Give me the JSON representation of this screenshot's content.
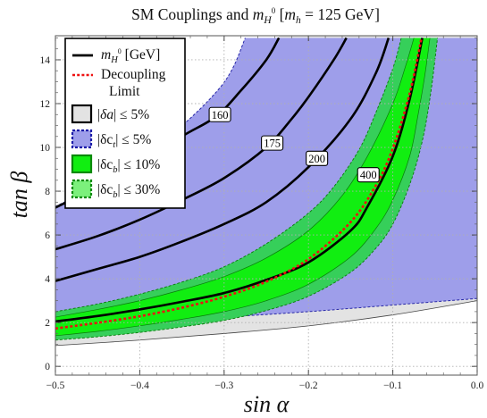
{
  "chart_data": {
    "type": "contour-region",
    "title": "SM Couplings and m_H⁰ [m_h = 125 GeV]",
    "title_parts": {
      "pre": "SM Couplings and ",
      "var": "m",
      "sub": "H",
      "sup": "0",
      "post": " [",
      "var2": "m",
      "sub2": "h",
      "post2": " = 125 GeV]"
    },
    "xlabel": "sin α",
    "ylabel": "tan β",
    "xlim": [
      -0.5,
      0.0
    ],
    "ylim": [
      -0.4,
      15.1
    ],
    "xticks": [
      -0.5,
      -0.4,
      -0.3,
      -0.2,
      -0.1,
      0.0
    ],
    "xtick_labels": [
      "−0.5",
      "−0.4",
      "−0.3",
      "−0.2",
      "−0.1",
      "0.0"
    ],
    "yticks": [
      0,
      2,
      4,
      6,
      8,
      10,
      12,
      14
    ],
    "ytick_labels": [
      "0",
      "2",
      "4",
      "6",
      "8",
      "10",
      "12",
      "14"
    ],
    "grid": true,
    "legend_position": "top-left",
    "legend": [
      {
        "kind": "line",
        "label": "m_H⁰ [GeV]",
        "color": "#000000"
      },
      {
        "kind": "dashed-line",
        "label": "Decoupling",
        "label2": "Limit",
        "color": "#ee1111"
      },
      {
        "kind": "box",
        "label": "|δa| ≤ 5%",
        "fill": "#e3e3e3",
        "border": "#000000"
      },
      {
        "kind": "box",
        "label": "|δc_t| ≤ 5%",
        "fill": "#9e9eea",
        "border": "#1a1aa8"
      },
      {
        "kind": "box",
        "label": "|δc_b| ≤ 10%",
        "fill": "#11ee11",
        "border": "#0a8a0a"
      },
      {
        "kind": "box",
        "label": "|δc_b| ≤ 30%",
        "fill": "#7cf07c",
        "border": "#0a8a0a"
      }
    ],
    "contours": [
      {
        "mass": "160",
        "points": [
          [
            -0.5,
            7.25
          ],
          [
            -0.45,
            8.2
          ],
          [
            -0.4,
            9.2
          ],
          [
            -0.35,
            10.5
          ],
          [
            -0.31,
            11.4
          ],
          [
            -0.28,
            12.6
          ],
          [
            -0.25,
            14.0
          ],
          [
            -0.235,
            15.0
          ]
        ]
      },
      {
        "mass": "175",
        "points": [
          [
            -0.5,
            5.35
          ],
          [
            -0.45,
            5.95
          ],
          [
            -0.4,
            6.7
          ],
          [
            -0.35,
            7.6
          ],
          [
            -0.3,
            8.6
          ],
          [
            -0.25,
            10.0
          ],
          [
            -0.22,
            11.3
          ],
          [
            -0.2,
            12.3
          ],
          [
            -0.17,
            14.0
          ],
          [
            -0.155,
            15.0
          ]
        ]
      },
      {
        "mass": "200",
        "points": [
          [
            -0.5,
            3.9
          ],
          [
            -0.45,
            4.45
          ],
          [
            -0.4,
            5.0
          ],
          [
            -0.35,
            5.7
          ],
          [
            -0.3,
            6.5
          ],
          [
            -0.25,
            7.5
          ],
          [
            -0.2,
            9.1
          ],
          [
            -0.15,
            11.3
          ],
          [
            -0.12,
            13.4
          ],
          [
            -0.105,
            15.0
          ]
        ]
      },
      {
        "mass": "400",
        "points": [
          [
            -0.5,
            2.05
          ],
          [
            -0.45,
            2.3
          ],
          [
            -0.4,
            2.6
          ],
          [
            -0.35,
            2.95
          ],
          [
            -0.3,
            3.35
          ],
          [
            -0.25,
            3.95
          ],
          [
            -0.2,
            4.75
          ],
          [
            -0.15,
            6.2
          ],
          [
            -0.13,
            7.3
          ],
          [
            -0.1,
            9.6
          ],
          [
            -0.08,
            12.2
          ],
          [
            -0.065,
            15.0
          ]
        ]
      }
    ],
    "decoupling_limit": [
      [
        -0.5,
        1.73
      ],
      [
        -0.45,
        1.99
      ],
      [
        -0.4,
        2.29
      ],
      [
        -0.35,
        2.68
      ],
      [
        -0.3,
        3.18
      ],
      [
        -0.25,
        3.87
      ],
      [
        -0.2,
        4.9
      ],
      [
        -0.15,
        6.59
      ],
      [
        -0.12,
        8.27
      ],
      [
        -0.1,
        9.95
      ],
      [
        -0.08,
        12.46
      ],
      [
        -0.066,
        15.0
      ]
    ],
    "regions": {
      "delta_a_5pct": {
        "upper": [
          [
            -0.5,
            15.0
          ],
          [
            -0.5,
            15.0
          ]
        ],
        "upper_curve": [
          [
            -0.5,
            4.8
          ],
          [
            -0.45,
            5.5
          ],
          [
            -0.4,
            6.4
          ],
          [
            -0.35,
            7.6
          ],
          [
            -0.3,
            9.3
          ],
          [
            -0.27,
            11.0
          ],
          [
            -0.25,
            12.6
          ],
          [
            -0.235,
            15.0
          ]
        ],
        "lower_curve": [
          [
            -0.5,
            0.95
          ],
          [
            -0.4,
            1.2
          ],
          [
            -0.3,
            1.5
          ],
          [
            -0.2,
            1.85
          ],
          [
            -0.1,
            2.35
          ],
          [
            0.0,
            3.0
          ]
        ]
      },
      "delta_ct_5pct": {
        "upper_left": [
          [
            -0.5,
            7.3
          ],
          [
            -0.45,
            8.3
          ],
          [
            -0.4,
            9.6
          ],
          [
            -0.35,
            11.0
          ],
          [
            -0.31,
            12.5
          ],
          [
            -0.29,
            13.6
          ],
          [
            -0.275,
            15.0
          ]
        ],
        "lower_right": [
          [
            -0.5,
            1.9
          ],
          [
            -0.4,
            2.05
          ],
          [
            -0.3,
            2.25
          ],
          [
            -0.2,
            2.5
          ],
          [
            -0.1,
            2.8
          ],
          [
            0.0,
            3.1
          ]
        ]
      },
      "delta_cb_10pct": {
        "upper": [
          [
            -0.5,
            2.25
          ],
          [
            -0.45,
            2.6
          ],
          [
            -0.4,
            3.0
          ],
          [
            -0.35,
            3.5
          ],
          [
            -0.3,
            4.1
          ],
          [
            -0.25,
            4.95
          ],
          [
            -0.2,
            6.2
          ],
          [
            -0.16,
            7.8
          ],
          [
            -0.13,
            9.6
          ],
          [
            -0.1,
            12.0
          ],
          [
            -0.085,
            13.7
          ],
          [
            -0.075,
            15.0
          ]
        ],
        "lower": [
          [
            -0.5,
            1.4
          ],
          [
            -0.45,
            1.6
          ],
          [
            -0.4,
            1.85
          ],
          [
            -0.35,
            2.15
          ],
          [
            -0.3,
            2.5
          ],
          [
            -0.25,
            3.0
          ],
          [
            -0.2,
            3.75
          ],
          [
            -0.15,
            5.0
          ],
          [
            -0.12,
            6.3
          ],
          [
            -0.1,
            7.6
          ],
          [
            -0.08,
            9.6
          ],
          [
            -0.07,
            11.5
          ],
          [
            -0.062,
            13.3
          ],
          [
            -0.056,
            15.0
          ]
        ]
      },
      "delta_cb_30pct": {
        "upper": [
          [
            -0.5,
            2.5
          ],
          [
            -0.45,
            2.85
          ],
          [
            -0.4,
            3.3
          ],
          [
            -0.35,
            3.85
          ],
          [
            -0.3,
            4.55
          ],
          [
            -0.25,
            5.6
          ],
          [
            -0.2,
            7.0
          ],
          [
            -0.17,
            8.2
          ],
          [
            -0.14,
            9.9
          ],
          [
            -0.12,
            11.6
          ],
          [
            -0.1,
            13.6
          ],
          [
            -0.09,
            15.0
          ]
        ],
        "lower": [
          [
            -0.5,
            1.2
          ],
          [
            -0.45,
            1.35
          ],
          [
            -0.4,
            1.55
          ],
          [
            -0.35,
            1.8
          ],
          [
            -0.3,
            2.1
          ],
          [
            -0.25,
            2.55
          ],
          [
            -0.2,
            3.2
          ],
          [
            -0.15,
            4.3
          ],
          [
            -0.12,
            5.4
          ],
          [
            -0.1,
            6.5
          ],
          [
            -0.08,
            8.3
          ],
          [
            -0.065,
            10.3
          ],
          [
            -0.055,
            12.5
          ],
          [
            -0.047,
            15.0
          ]
        ]
      }
    },
    "contour_labels": [
      {
        "text": "160",
        "x": -0.305,
        "y": 11.5
      },
      {
        "text": "175",
        "x": -0.243,
        "y": 10.2
      },
      {
        "text": "200",
        "x": -0.19,
        "y": 9.5
      },
      {
        "text": "400",
        "x": -0.129,
        "y": 8.75
      }
    ],
    "colors": {
      "delta_a": "#e3e3e3",
      "delta_a_edge": "#444444",
      "delta_ct": "#9e9eea",
      "delta_ct_edge": "#2828a8",
      "delta_cb10": "#11ee11",
      "delta_cb30": "#36cf5a",
      "delta_cb_edge": "#0a7a0a",
      "decoupling": "#ee1111",
      "grid": "#b0b0b0"
    }
  }
}
